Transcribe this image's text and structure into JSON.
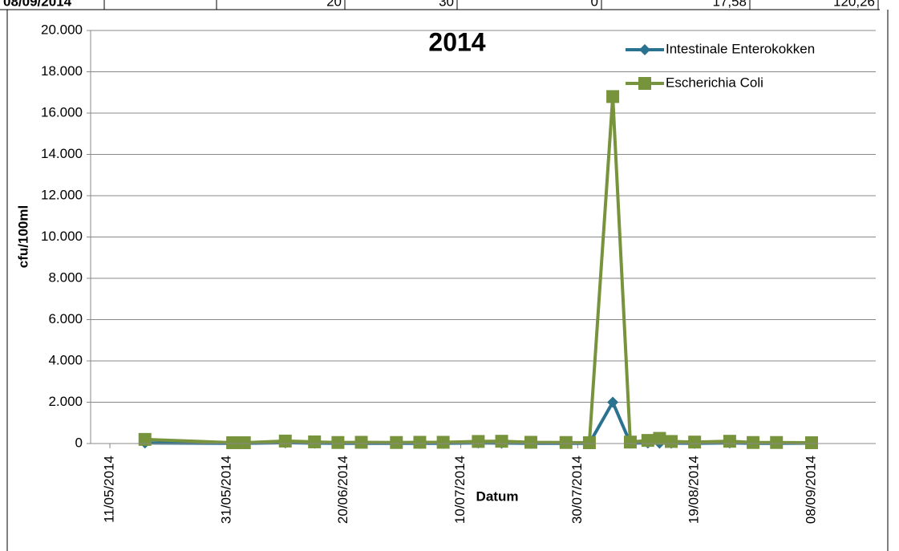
{
  "table_row": [
    "08/09/2014",
    "20",
    "30",
    "0",
    "17,58",
    "120,26"
  ],
  "chart_data": {
    "type": "line",
    "title": "2014",
    "x_label": "Datum",
    "y_label": "cfu/100ml",
    "x": [
      "17/05/2014",
      "01/06/2014",
      "03/06/2014",
      "10/06/2014",
      "15/06/2014",
      "19/06/2014",
      "23/06/2014",
      "29/06/2014",
      "03/07/2014",
      "07/07/2014",
      "13/07/2014",
      "17/07/2014",
      "22/07/2014",
      "28/07/2014",
      "01/08/2014",
      "05/08/2014",
      "08/08/2014",
      "11/08/2014",
      "13/08/2014",
      "15/08/2014",
      "19/08/2014",
      "25/08/2014",
      "29/08/2014",
      "02/09/2014",
      "08/09/2014"
    ],
    "series": [
      {
        "name": "Intestinale Enterokokken",
        "color": "#2a7290",
        "marker": "diamond",
        "values": [
          30,
          10,
          10,
          40,
          20,
          10,
          10,
          10,
          10,
          10,
          30,
          20,
          10,
          10,
          10,
          2000,
          20,
          30,
          20,
          20,
          10,
          30,
          10,
          10,
          20
        ]
      },
      {
        "name": "Escherichia Coli",
        "color": "#77933c",
        "marker": "square",
        "values": [
          200,
          40,
          40,
          120,
          80,
          50,
          60,
          50,
          60,
          60,
          100,
          110,
          60,
          50,
          40,
          16800,
          70,
          150,
          250,
          100,
          70,
          110,
          50,
          50,
          40
        ]
      }
    ],
    "xlim": [
      "11/05/2014",
      "08/09/2014"
    ],
    "xticks": [
      "11/05/2014",
      "31/05/2014",
      "20/06/2014",
      "10/07/2014",
      "30/07/2014",
      "19/08/2014",
      "08/09/2014"
    ],
    "ylim": [
      0,
      20000
    ],
    "yticks": [
      0,
      {
        "value": 2000,
        "label": "2.000"
      },
      {
        "value": 4000,
        "label": "4.000"
      },
      {
        "value": 6000,
        "label": "6.000"
      },
      {
        "value": 8000,
        "label": "8.000"
      },
      {
        "value": 10000,
        "label": "10.000"
      },
      {
        "value": 12000,
        "label": "12.000"
      },
      {
        "value": 14000,
        "label": "14.000"
      },
      {
        "value": 16000,
        "label": "16.000"
      },
      {
        "value": 18000,
        "label": "18.000"
      },
      {
        "value": 20000,
        "label": "20.000"
      }
    ],
    "grid": true,
    "legend": "top-right"
  }
}
